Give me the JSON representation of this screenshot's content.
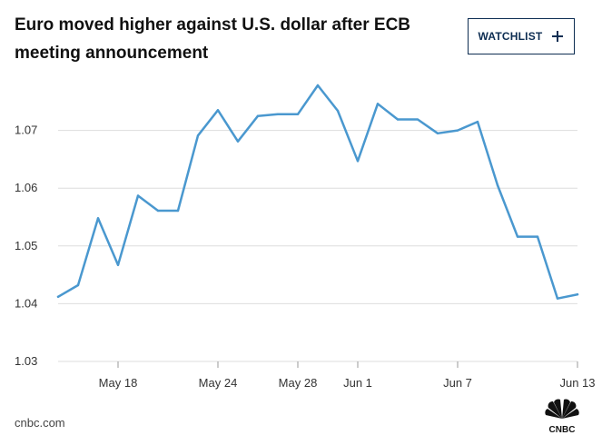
{
  "header": {
    "title": "Euro moved higher against U.S. dollar after ECB meeting announcement",
    "watchlist_label": "WATCHLIST",
    "watchlist_icon": "plus-icon"
  },
  "footer": {
    "source": "cnbc.com",
    "logo": "CNBC",
    "logo_icon": "cnbc-peacock-logo"
  },
  "colors": {
    "line": "#4a98cf",
    "grid": "#dddddd",
    "button_border": "#0d2d52"
  },
  "chart_data": {
    "type": "line",
    "title": "Euro moved higher against U.S. dollar after ECB meeting announcement",
    "xlabel": "",
    "ylabel": "",
    "ylim": [
      1.03,
      1.08
    ],
    "grid": true,
    "y_ticks": [
      "1.03",
      "1.04",
      "1.05",
      "1.06",
      "1.07"
    ],
    "x_tick_labels": [
      "May 18",
      "May 24",
      "May 28",
      "Jun 1",
      "Jun 7",
      "Jun 13"
    ],
    "x_tick_indices": [
      3,
      8,
      12,
      15,
      20,
      26
    ],
    "series": [
      {
        "values": [
          1.0412,
          1.0432,
          1.0548,
          1.0467,
          1.0587,
          1.0561,
          1.0561,
          1.0691,
          1.0735,
          1.0681,
          1.0725,
          1.0728,
          1.0728,
          1.0778,
          1.0734,
          1.0647,
          1.0746,
          1.0719,
          1.0719,
          1.0695,
          1.07,
          1.0715,
          1.0605,
          1.0516,
          1.0516,
          1.0409,
          1.0416
        ]
      }
    ]
  }
}
